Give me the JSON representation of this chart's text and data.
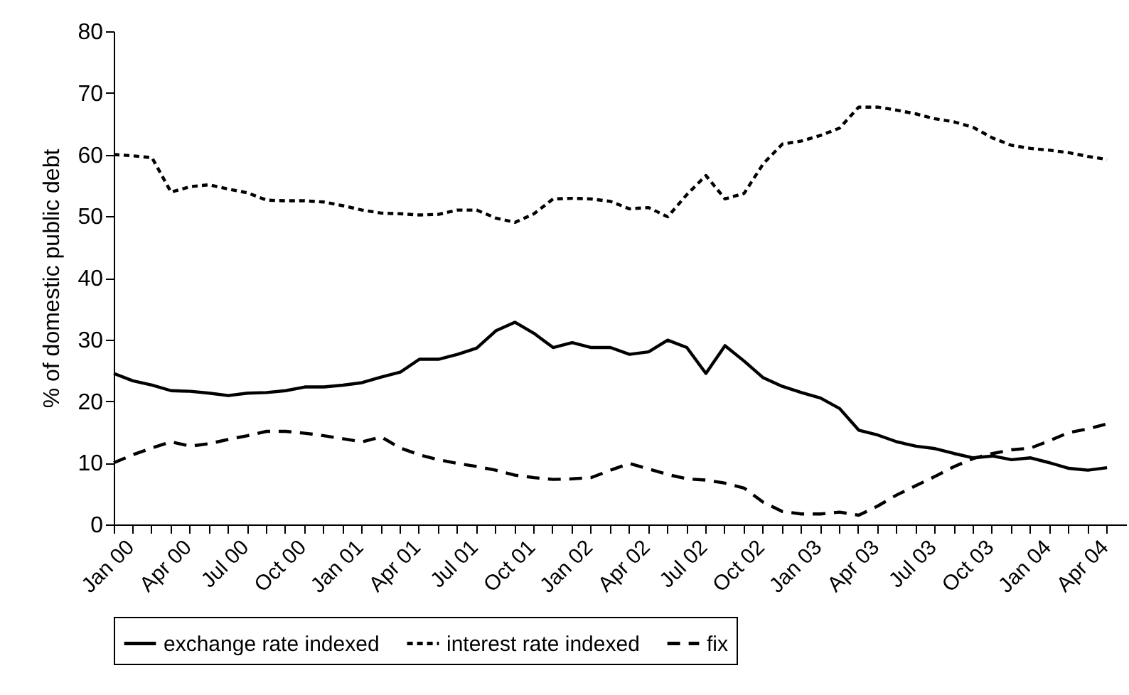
{
  "chart_data": {
    "type": "line",
    "ylabel": "% of domestic public debt",
    "categories": [
      "Jan 00",
      null,
      null,
      "Apr 00",
      null,
      null,
      "Jul 00",
      null,
      null,
      "Oct 00",
      null,
      null,
      "Jan 01",
      null,
      null,
      "Apr 01",
      null,
      null,
      "Jul 01",
      null,
      null,
      "Oct 01",
      null,
      null,
      "Jan 02",
      null,
      null,
      "Apr 02",
      null,
      null,
      "Jul 02",
      null,
      null,
      "Oct 02",
      null,
      null,
      "Jan 03",
      null,
      null,
      "Apr 03",
      null,
      null,
      "Jul 03",
      null,
      null,
      "Oct 03",
      null,
      null,
      "Jan 04",
      null,
      null,
      "Apr 04",
      null
    ],
    "ylim": [
      0,
      80
    ],
    "yticks": [
      0,
      10,
      20,
      30,
      40,
      50,
      60,
      70,
      80
    ],
    "legend": "bottom",
    "grid": false,
    "series": [
      {
        "name": "exchange rate indexed",
        "color": "#000000",
        "line_style": "solid",
        "values": [
          24.5,
          23.3,
          22.6,
          21.7,
          21.6,
          21.3,
          20.9,
          21.3,
          21.4,
          21.7,
          22.3,
          22.3,
          22.6,
          23.0,
          23.9,
          24.7,
          26.8,
          26.8,
          27.6,
          28.6,
          31.4,
          32.8,
          31.0,
          28.7,
          29.5,
          28.7,
          28.7,
          27.6,
          28.0,
          29.9,
          28.7,
          24.5,
          29.0,
          26.5,
          23.8,
          22.4,
          21.4,
          20.5,
          18.8,
          15.3,
          14.5,
          13.4,
          12.7,
          12.3,
          11.5,
          10.8,
          11.1,
          10.5,
          10.8,
          10.0,
          9.1,
          8.8,
          9.2
        ]
      },
      {
        "name": "interest rate indexed",
        "color": "#000000",
        "line_style": "dotted",
        "values": [
          60.0,
          59.8,
          59.5,
          53.9,
          54.8,
          55.1,
          54.4,
          53.8,
          52.6,
          52.5,
          52.5,
          52.3,
          51.7,
          51.0,
          50.5,
          50.4,
          50.2,
          50.3,
          51.0,
          51.0,
          49.7,
          49.0,
          50.4,
          52.8,
          52.9,
          52.8,
          52.4,
          51.2,
          51.4,
          49.9,
          53.5,
          56.6,
          52.8,
          53.7,
          58.5,
          61.7,
          62.2,
          63.1,
          64.3,
          67.7,
          67.7,
          67.2,
          66.6,
          65.8,
          65.3,
          64.4,
          62.7,
          61.5,
          61.0,
          60.7,
          60.3,
          59.7,
          59.2
        ]
      },
      {
        "name": "fix",
        "color": "#000000",
        "line_style": "dashed",
        "values": [
          10.0,
          11.3,
          12.4,
          13.4,
          12.7,
          13.1,
          13.8,
          14.4,
          15.1,
          15.1,
          14.8,
          14.4,
          13.9,
          13.4,
          14.2,
          12.4,
          11.3,
          10.5,
          9.9,
          9.4,
          8.8,
          8.0,
          7.6,
          7.3,
          7.4,
          7.6,
          8.8,
          9.9,
          9.0,
          8.1,
          7.4,
          7.2,
          6.7,
          5.9,
          3.6,
          2.1,
          1.7,
          1.7,
          2.0,
          1.5,
          3.0,
          4.8,
          6.3,
          7.8,
          9.4,
          10.7,
          11.5,
          12.1,
          12.4,
          13.6,
          14.9,
          15.5,
          16.3
        ]
      }
    ]
  }
}
